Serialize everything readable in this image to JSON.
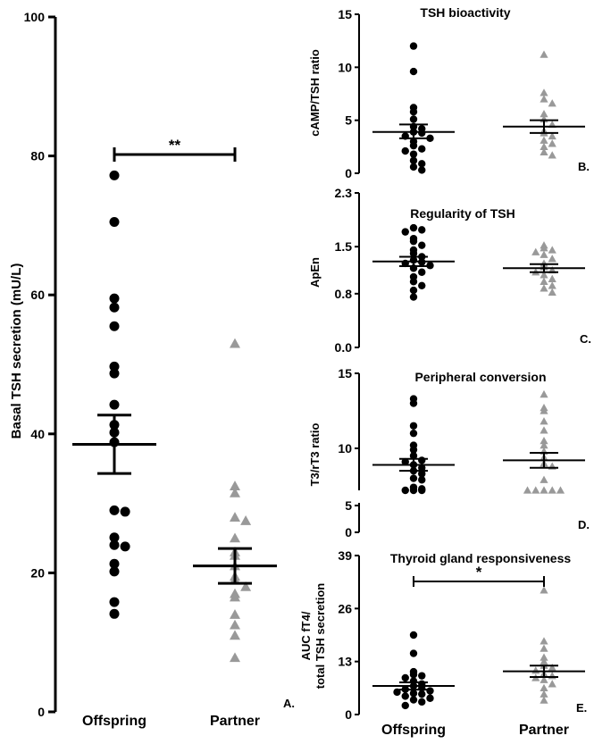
{
  "colors": {
    "offspring": "#000000",
    "partner": "#999999",
    "axis": "#000000"
  },
  "chart_data": [
    {
      "panel": "A.",
      "type": "scatter",
      "title": "",
      "ylabel": "Basal TSH secretion (mU/L)",
      "ylim": [
        0,
        100
      ],
      "yticks": [
        "0",
        "20",
        "40",
        "60",
        "80",
        "100"
      ],
      "categories": [
        "Offspring",
        "Partner"
      ],
      "series": [
        {
          "name": "Offspring",
          "marker": "circle",
          "mean": 38.5,
          "sem_low": 34.3,
          "sem_high": 42.7,
          "values": [
            77.2,
            70.5,
            59.5,
            58.2,
            55.5,
            49.7,
            48.7,
            44.2,
            41.3,
            40.2,
            38.8,
            29.0,
            28.8,
            25.1,
            24.0,
            23.8,
            21.3,
            20.2,
            15.8,
            14.1
          ]
        },
        {
          "name": "Partner",
          "marker": "triangle",
          "mean": 21.0,
          "sem_low": 18.5,
          "sem_high": 23.5,
          "values": [
            53.0,
            32.5,
            31.5,
            28.0,
            27.5,
            25.0,
            23.0,
            22.5,
            21.0,
            19.5,
            19.0,
            18.0,
            17.0,
            16.5,
            14.0,
            12.5,
            11.0,
            7.8
          ]
        }
      ],
      "annotation": {
        "text": "**",
        "y": 81
      }
    },
    {
      "panel": "B.",
      "type": "scatter",
      "title": "TSH bioactivity",
      "ylabel": "cAMP/TSH ratio",
      "ylim": [
        0,
        15
      ],
      "yticks": [
        "0",
        "5",
        "10",
        "15"
      ],
      "series": [
        {
          "name": "Offspring",
          "marker": "circle",
          "mean": 3.9,
          "sem_low": 3.3,
          "sem_high": 4.6,
          "values": [
            12.0,
            9.6,
            6.2,
            5.8,
            5.1,
            4.4,
            4.2,
            3.9,
            3.8,
            3.5,
            3.3,
            3.0,
            2.6,
            2.3,
            2.1,
            1.8,
            1.2,
            0.9,
            0.6,
            0.3
          ]
        },
        {
          "name": "Partner",
          "marker": "triangle",
          "mean": 4.4,
          "sem_low": 3.8,
          "sem_high": 5.0,
          "values": [
            11.2,
            7.6,
            7.0,
            6.6,
            5.6,
            5.1,
            4.6,
            4.0,
            3.8,
            3.5,
            3.1,
            2.8,
            2.5,
            2.0,
            1.7
          ]
        }
      ]
    },
    {
      "panel": "C.",
      "type": "scatter",
      "title": "Regularity of  TSH",
      "ylabel": "ApEn",
      "ylim": [
        0,
        2.3
      ],
      "yticks": [
        "0.0",
        "0.8",
        "1.5",
        "2.3"
      ],
      "series": [
        {
          "name": "Offspring",
          "marker": "circle",
          "mean": 1.28,
          "sem_low": 1.21,
          "sem_high": 1.35,
          "values": [
            1.78,
            1.75,
            1.72,
            1.62,
            1.58,
            1.52,
            1.45,
            1.4,
            1.35,
            1.3,
            1.27,
            1.25,
            1.22,
            1.18,
            1.12,
            1.05,
            0.98,
            0.92,
            0.85,
            0.75
          ]
        },
        {
          "name": "Partner",
          "marker": "triangle",
          "mean": 1.18,
          "sem_low": 1.12,
          "sem_high": 1.24,
          "values": [
            1.52,
            1.48,
            1.45,
            1.42,
            1.38,
            1.32,
            1.25,
            1.2,
            1.15,
            1.12,
            1.08,
            1.02,
            0.98,
            0.92,
            0.88,
            0.82
          ]
        }
      ]
    },
    {
      "panel": "D.",
      "type": "scatter",
      "title": "Peripheral conversion",
      "ylabel": "T3/rT3 ratio",
      "ylim": [
        0,
        15
      ],
      "yticks": [
        "0",
        "5",
        "10",
        "15"
      ],
      "axis_break": [
        5.5,
        7.2
      ],
      "series": [
        {
          "name": "Offspring",
          "marker": "circle",
          "mean": 8.9,
          "sem_low": 8.5,
          "sem_high": 9.3,
          "values": [
            13.3,
            13.0,
            11.5,
            11.0,
            10.2,
            9.9,
            9.5,
            9.2,
            9.1,
            8.9,
            8.7,
            8.5,
            8.3,
            8.0,
            7.9,
            7.4,
            7.3,
            7.2,
            7.2,
            7.2
          ]
        },
        {
          "name": "Partner",
          "marker": "triangle",
          "mean": 9.2,
          "sem_low": 8.7,
          "sem_high": 9.7,
          "values": [
            13.6,
            12.7,
            12.5,
            11.8,
            11.2,
            10.5,
            10.2,
            9.8,
            9.4,
            9.0,
            8.8,
            7.9,
            7.2,
            7.2,
            7.2,
            7.2,
            7.2
          ]
        }
      ]
    },
    {
      "panel": "E.",
      "type": "scatter",
      "title": "Thyroid gland responsiveness",
      "ylabel": "AUC fT4/",
      "ylabel2": "total TSH secretion",
      "ylim": [
        0,
        39
      ],
      "yticks": [
        "0",
        "13",
        "26",
        "39"
      ],
      "categories": [
        "Offspring",
        "Partner"
      ],
      "series": [
        {
          "name": "Offspring",
          "marker": "circle",
          "mean": 7.0,
          "sem_low": 6.1,
          "sem_high": 7.9,
          "values": [
            19.5,
            15.0,
            10.5,
            9.8,
            9.5,
            9.0,
            8.2,
            7.5,
            7.0,
            6.5,
            6.2,
            5.8,
            5.5,
            5.2,
            5.0,
            4.5,
            4.0,
            3.6,
            3.1,
            2.2
          ]
        },
        {
          "name": "Partner",
          "marker": "triangle",
          "mean": 10.6,
          "sem_low": 9.2,
          "sem_high": 12.0,
          "values": [
            30.5,
            18.0,
            16.2,
            14.0,
            13.0,
            12.0,
            11.5,
            10.8,
            10.0,
            9.5,
            9.0,
            8.5,
            7.5,
            6.5,
            5.0,
            3.5
          ]
        }
      ],
      "annotation": {
        "text": "*",
        "y": 31.5
      }
    }
  ]
}
